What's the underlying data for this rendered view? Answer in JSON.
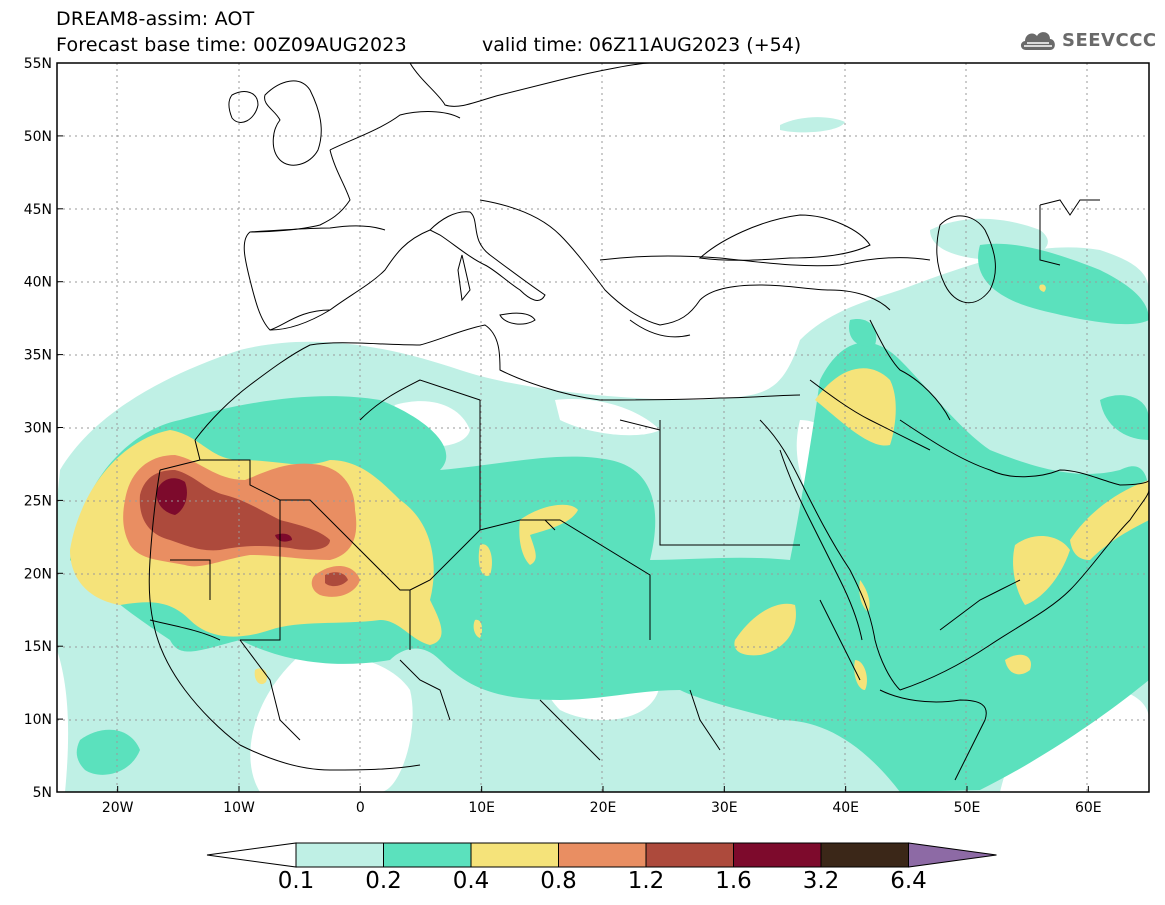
{
  "header": {
    "title_line1": "DREAM8-assim: AOT",
    "title_line2": "Forecast base time: 00Z09AUG2023",
    "valid_time": "valid time: 06Z11AUG2023 (+54)"
  },
  "logo": {
    "text": "SEEVCCC",
    "icon": "cloud-icon"
  },
  "map": {
    "lon_range": [
      -25,
      65
    ],
    "lat_range": [
      5,
      55
    ],
    "lat_labels": [
      "55N",
      "50N",
      "45N",
      "40N",
      "35N",
      "30N",
      "25N",
      "20N",
      "15N",
      "10N",
      "5N"
    ],
    "lon_labels": [
      "20W",
      "10W",
      "0",
      "10E",
      "20E",
      "30E",
      "40E",
      "50E",
      "60E"
    ]
  },
  "colorbar": {
    "labels": [
      "0.1",
      "0.2",
      "0.4",
      "0.8",
      "1.2",
      "1.6",
      "3.2",
      "6.4"
    ],
    "colors": [
      "#ffffff",
      "#bff0e5",
      "#5be1bd",
      "#f5e37a",
      "#e98e62",
      "#ad4a3c",
      "#7d0a2c",
      "#3b2718",
      "#8d6aa5"
    ]
  }
}
